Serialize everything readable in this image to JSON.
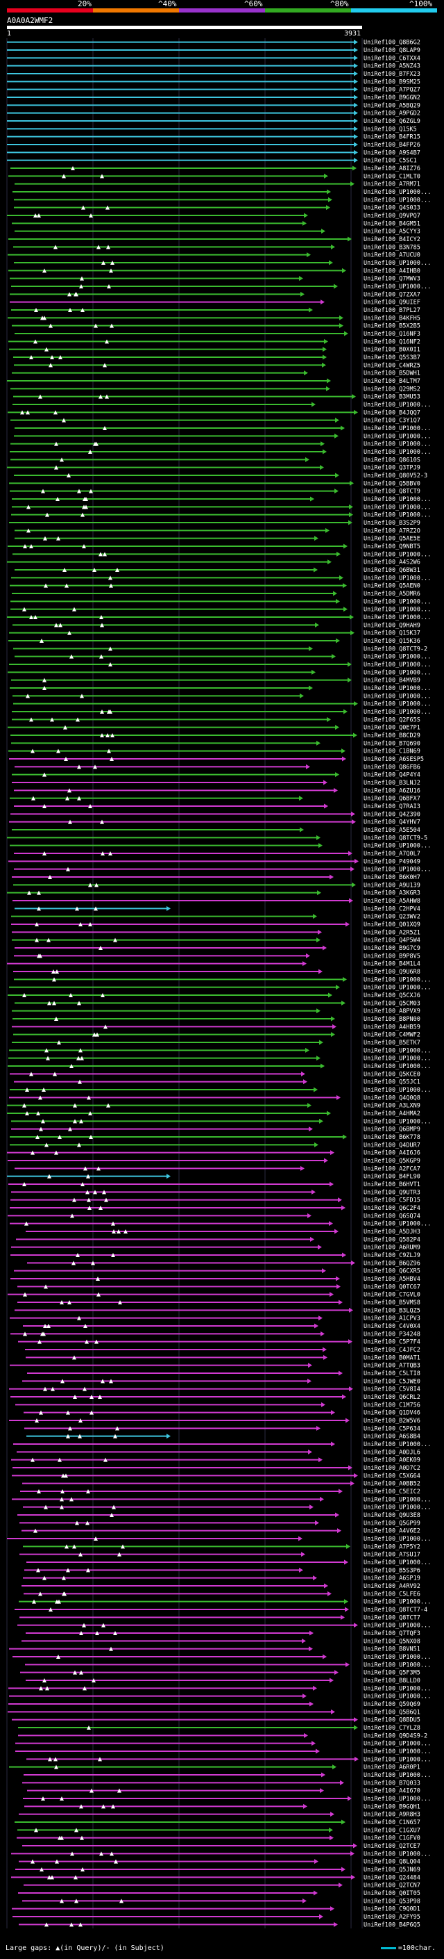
{
  "colors": {
    "red": "#e8001e",
    "orange": "#f07800",
    "purple": "#9933cc",
    "green": "#33aa22",
    "cyan": "#22ccee",
    "line_cyan": "#3ec6df",
    "line_green": "#3bbb2f",
    "line_magenta": "#d13ad1",
    "line_blue": "#3a5cff"
  },
  "header": {
    "percent_labels": [
      "20%",
      "^40%",
      "^60%",
      "^80%",
      "^100%"
    ],
    "query_id": "A0A0A2WMF2",
    "query_start": "1",
    "query_end": "3931"
  },
  "legend": {
    "text": "Large gaps: ▲(in Query)/- (in Subject)"
  },
  "scale": {
    "text": "=100char."
  },
  "hits": [
    {
      "label": "UniRef100_Q8B6G2",
      "color": "cyan"
    },
    {
      "label": "UniRef100_Q8LAP9",
      "color": "cyan"
    },
    {
      "label": "UniRef100_C6TXX4",
      "color": "cyan"
    },
    {
      "label": "UniRef100_A5NZ43",
      "color": "cyan"
    },
    {
      "label": "UniRef100_B7FX23",
      "color": "cyan"
    },
    {
      "label": "UniRef100_B9SM25",
      "color": "cyan"
    },
    {
      "label": "UniRef100_A7PQZ7",
      "color": "cyan"
    },
    {
      "label": "UniRef100_B9GGN2",
      "color": "cyan"
    },
    {
      "label": "UniRef100_A5BQ29",
      "color": "cyan"
    },
    {
      "label": "UniRef100_A9PGD2",
      "color": "cyan"
    },
    {
      "label": "UniRef100_Q6ZGL9",
      "color": "cyan"
    },
    {
      "label": "UniRef100_Q15K5",
      "color": "cyan"
    },
    {
      "label": "UniRef100_B4FR15",
      "color": "cyan"
    },
    {
      "label": "UniRef100_B4FP26",
      "color": "cyan"
    },
    {
      "label": "UniRef100_A9S4B7",
      "color": "cyan"
    },
    {
      "label": "UniRef100_C5SC1",
      "color": "cyan"
    },
    {
      "label": "UniRef100_A8IZ76",
      "color": "green"
    },
    {
      "label": "UniRef100_C1MLT0",
      "color": "green"
    },
    {
      "label": "UniRef100_A7RM71",
      "color": "green"
    },
    {
      "label": "UniRef100_UP1000...",
      "color": "green"
    },
    {
      "label": "UniRef100_UP1000...",
      "color": "green"
    },
    {
      "label": "UniRef100_Q4S033",
      "color": "green"
    },
    {
      "label": "UniRef100_Q9VPQ7",
      "color": "green"
    },
    {
      "label": "UniRef100_B4GM51",
      "color": "green"
    },
    {
      "label": "UniRef100_A5CYY3",
      "color": "green"
    },
    {
      "label": "UniRef100_B4ICY2",
      "color": "green"
    },
    {
      "label": "UniRef100_B3N785",
      "color": "green"
    },
    {
      "label": "UniRef100_A7UCU0",
      "color": "green"
    },
    {
      "label": "UniRef100_UP1000...",
      "color": "green"
    },
    {
      "label": "UniRef100_A4IHB0",
      "color": "green"
    },
    {
      "label": "UniRef100_Q7MWV3",
      "color": "green"
    },
    {
      "label": "UniRef100_UP1000...",
      "color": "green"
    },
    {
      "label": "UniRef100_Q7ZXA7",
      "color": "green"
    },
    {
      "label": "UniRef100_Q9UIEF",
      "color": "magenta"
    },
    {
      "label": "UniRef100_B7PL27",
      "color": "green"
    },
    {
      "label": "UniRef100_B4KFH5",
      "color": "green"
    },
    {
      "label": "UniRef100_B5X2B5",
      "color": "green"
    },
    {
      "label": "UniRef100_Q16NF3",
      "color": "green"
    },
    {
      "label": "UniRef100_Q16NF2",
      "color": "green"
    },
    {
      "label": "UniRef100_B0X0I1",
      "color": "green"
    },
    {
      "label": "UniRef100_Q5S3B7",
      "color": "green"
    },
    {
      "label": "UniRef100_C4WRZ5",
      "color": "green"
    },
    {
      "label": "UniRef100_B5DWH1",
      "color": "green"
    },
    {
      "label": "UniRef100_B4LTM7",
      "color": "green"
    },
    {
      "label": "UniRef100_Q29MS2",
      "color": "green"
    },
    {
      "label": "UniRef100_B3MU53",
      "color": "green"
    },
    {
      "label": "UniRef100_UP1000...",
      "color": "green"
    },
    {
      "label": "UniRef100_B4JQQ7",
      "color": "green"
    },
    {
      "label": "UniRef100_C3Y1Q7",
      "color": "green"
    },
    {
      "label": "UniRef100_UP1000...",
      "color": "green"
    },
    {
      "label": "UniRef100_UP1000...",
      "color": "green"
    },
    {
      "label": "UniRef100_UP1000...",
      "color": "green"
    },
    {
      "label": "UniRef100_UP1000...",
      "color": "green"
    },
    {
      "label": "UniRef100_Q8610S",
      "color": "green"
    },
    {
      "label": "UniRef100_Q3TPJ9",
      "color": "green"
    },
    {
      "label": "UniRef100_Q80V52-3",
      "color": "green"
    },
    {
      "label": "UniRef100_Q5BBV0",
      "color": "green"
    },
    {
      "label": "UniRef100_Q8TCT9",
      "color": "green"
    },
    {
      "label": "UniRef100_UP1000...",
      "color": "green"
    },
    {
      "label": "UniRef100_UP1000...",
      "color": "green"
    },
    {
      "label": "UniRef100_UP1000...",
      "color": "green"
    },
    {
      "label": "UniRef100_B3S2P9",
      "color": "green"
    },
    {
      "label": "UniRef100_A7RZ2O",
      "color": "green"
    },
    {
      "label": "UniRef100_Q5AE5E",
      "color": "green"
    },
    {
      "label": "UniRef100_Q9NBT5",
      "color": "green"
    },
    {
      "label": "UniRef100_UP1000...",
      "color": "green"
    },
    {
      "label": "UniRef100_A4S2W6",
      "color": "green"
    },
    {
      "label": "UniRef100_Q6BW31",
      "color": "green"
    },
    {
      "label": "UniRef100_UP1000...",
      "color": "green"
    },
    {
      "label": "UniRef100_Q5AEN0",
      "color": "green"
    },
    {
      "label": "UniRef100_A5DMR6",
      "color": "green"
    },
    {
      "label": "UniRef100_UP1000...",
      "color": "green"
    },
    {
      "label": "UniRef100_UP1000...",
      "color": "green"
    },
    {
      "label": "UniRef100_UP1000...",
      "color": "green"
    },
    {
      "label": "UniRef100_Q9HAH9",
      "color": "green"
    },
    {
      "label": "UniRef100_Q15K37",
      "color": "green"
    },
    {
      "label": "UniRef100_Q15K36",
      "color": "green"
    },
    {
      "label": "UniRef100_Q8TCT9-2",
      "color": "green"
    },
    {
      "label": "UniRef100_UP1000...",
      "color": "green"
    },
    {
      "label": "UniRef100_UP1000...",
      "color": "green"
    },
    {
      "label": "UniRef100_UP1000...",
      "color": "green"
    },
    {
      "label": "UniRef100_B4MVB9",
      "color": "green"
    },
    {
      "label": "UniRef100_UP1000...",
      "color": "green"
    },
    {
      "label": "UniRef100_UP1000...",
      "color": "green"
    },
    {
      "label": "UniRef100_UP1000...",
      "color": "green"
    },
    {
      "label": "UniRef100_UP1000...",
      "color": "green"
    },
    {
      "label": "UniRef100_Q2F65S",
      "color": "green"
    },
    {
      "label": "UniRef100_Q0E7P1",
      "color": "green"
    },
    {
      "label": "UniRef100_B8CD29",
      "color": "green"
    },
    {
      "label": "UniRef100_B7Q690",
      "color": "green"
    },
    {
      "label": "UniRef100_C1BN69",
      "color": "green"
    },
    {
      "label": "UniRef100_A6SESP5",
      "color": "magenta"
    },
    {
      "label": "UniRef100_Q86FB6",
      "color": "magenta"
    },
    {
      "label": "UniRef100_Q4P4Y4",
      "color": "green"
    },
    {
      "label": "UniRef100_B3LNJ2",
      "color": "magenta"
    },
    {
      "label": "UniRef100_A6ZU16",
      "color": "magenta"
    },
    {
      "label": "UniRef100_Q6BFX7",
      "color": "green"
    },
    {
      "label": "UniRef100_Q7RAI3",
      "color": "magenta"
    },
    {
      "label": "UniRef100_Q4Z390",
      "color": "magenta"
    },
    {
      "label": "UniRef100_Q4YHV7",
      "color": "magenta"
    },
    {
      "label": "UniRef100_A5E504",
      "color": "green"
    },
    {
      "label": "UniRef100_Q8TCT9-5",
      "color": "green"
    },
    {
      "label": "UniRef100_UP1000...",
      "color": "green"
    },
    {
      "label": "UniRef100_A7Q0L7",
      "color": "magenta"
    },
    {
      "label": "UniRef100_P49049",
      "color": "magenta"
    },
    {
      "label": "UniRef100_UP1000...",
      "color": "magenta"
    },
    {
      "label": "UniRef100_B6K0H7",
      "color": "magenta"
    },
    {
      "label": "UniRef100_A9U139",
      "color": "green"
    },
    {
      "label": "UniRef100_A3KGR3",
      "color": "green"
    },
    {
      "label": "UniRef100_A5AHW8",
      "color": "magenta"
    },
    {
      "label": "UniRef100_C2HPV4",
      "color": "cyan"
    },
    {
      "label": "UniRef100_Q23WV2",
      "color": "green"
    },
    {
      "label": "UniRef100_Q01XQ9",
      "color": "magenta"
    },
    {
      "label": "UniRef100_A2R5Z1",
      "color": "magenta"
    },
    {
      "label": "UniRef100_Q4P5W4",
      "color": "green"
    },
    {
      "label": "UniRef100_B9G7C9",
      "color": "magenta"
    },
    {
      "label": "UniRef100_B9P8V5",
      "color": "magenta"
    },
    {
      "label": "UniRef100_B4M1L4",
      "color": "magenta"
    },
    {
      "label": "UniRef100_Q9U6R8",
      "color": "magenta"
    },
    {
      "label": "UniRef100_UP1000...",
      "color": "green"
    },
    {
      "label": "UniRef100_UP1000...",
      "color": "green"
    },
    {
      "label": "UniRef100_Q5CXJ6",
      "color": "green"
    },
    {
      "label": "UniRef100_Q5CM03",
      "color": "green"
    },
    {
      "label": "UniRef100_A8PVX9",
      "color": "green"
    },
    {
      "label": "UniRef100_B8PN00",
      "color": "green"
    },
    {
      "label": "UniRef100_A4HB59",
      "color": "magenta"
    },
    {
      "label": "UniRef100_C4MWF2",
      "color": "green"
    },
    {
      "label": "UniRef100_B5ETK7",
      "color": "green"
    },
    {
      "label": "UniRef100_UP1000...",
      "color": "green"
    },
    {
      "label": "UniRef100_UP1000...",
      "color": "green"
    },
    {
      "label": "UniRef100_UP1000...",
      "color": "green"
    },
    {
      "label": "UniRef100_Q5KCE0",
      "color": "magenta"
    },
    {
      "label": "UniRef100_Q55JC1",
      "color": "magenta"
    },
    {
      "label": "UniRef100_UP1000...",
      "color": "green"
    },
    {
      "label": "UniRef100_Q4Q0Q8",
      "color": "magenta"
    },
    {
      "label": "UniRef100_A3LXN9",
      "color": "green"
    },
    {
      "label": "UniRef100_A4HMA2",
      "color": "green"
    },
    {
      "label": "UniRef100_UP1000...",
      "color": "green"
    },
    {
      "label": "UniRef100_Q6BMP9",
      "color": "magenta"
    },
    {
      "label": "UniRef100_B6K778",
      "color": "green"
    },
    {
      "label": "UniRef100_Q4DUR7",
      "color": "green"
    },
    {
      "label": "UniRef100_A4I6J6",
      "color": "magenta"
    },
    {
      "label": "UniRef100_Q5KGP9",
      "color": "magenta"
    },
    {
      "label": "UniRef100_A2FCA7",
      "color": "magenta"
    },
    {
      "label": "UniRef100_B4FL90",
      "color": "cyan"
    },
    {
      "label": "UniRef100_B6HVT1",
      "color": "magenta"
    },
    {
      "label": "UniRef100_Q9UTR3",
      "color": "magenta"
    },
    {
      "label": "UniRef100_C5FD15",
      "color": "magenta"
    },
    {
      "label": "UniRef100_Q6C2F4",
      "color": "magenta"
    },
    {
      "label": "UniRef100_Q6SQ74",
      "color": "magenta"
    },
    {
      "label": "UniRef100_UP1000...",
      "color": "magenta"
    },
    {
      "label": "UniRef100_A5DJH3",
      "color": "magenta"
    },
    {
      "label": "UniRef100_Q582P4",
      "color": "magenta"
    },
    {
      "label": "UniRef100_A6RUM9",
      "color": "magenta"
    },
    {
      "label": "UniRef100_C9ZLJ9",
      "color": "magenta"
    },
    {
      "label": "UniRef100_B6QZ96",
      "color": "magenta"
    },
    {
      "label": "UniRef100_Q6CXR5",
      "color": "magenta"
    },
    {
      "label": "UniRef100_A5HBV4",
      "color": "magenta"
    },
    {
      "label": "UniRef100_Q0TC67",
      "color": "magenta"
    },
    {
      "label": "UniRef100_C7GVL0",
      "color": "magenta"
    },
    {
      "label": "UniRef100_B5VMS8",
      "color": "magenta"
    },
    {
      "label": "UniRef100_B3LQZ5",
      "color": "magenta"
    },
    {
      "label": "UniRef100_A1CPV3",
      "color": "magenta"
    },
    {
      "label": "UniRef100_C4V0X4",
      "color": "magenta"
    },
    {
      "label": "UniRef100_P34248",
      "color": "magenta"
    },
    {
      "label": "UniRef100_C5P7F4",
      "color": "magenta"
    },
    {
      "label": "UniRef100_C4JFC2",
      "color": "magenta"
    },
    {
      "label": "UniRef100_B0MAT1",
      "color": "magenta"
    },
    {
      "label": "UniRef100_A7TQB3",
      "color": "magenta"
    },
    {
      "label": "UniRef100_C5LTI8",
      "color": "magenta"
    },
    {
      "label": "UniRef100_C5JWE0",
      "color": "magenta"
    },
    {
      "label": "UniRef100_C5V8I4",
      "color": "magenta"
    },
    {
      "label": "UniRef100_Q6CRL2",
      "color": "magenta"
    },
    {
      "label": "UniRef100_C1M756",
      "color": "magenta"
    },
    {
      "label": "UniRef100_Q1DV46",
      "color": "magenta"
    },
    {
      "label": "UniRef100_B2W5V6",
      "color": "magenta"
    },
    {
      "label": "UniRef100_C5P634",
      "color": "magenta"
    },
    {
      "label": "UniRef100_A6S8B4",
      "color": "cyan"
    },
    {
      "label": "UniRef100_UP1000...",
      "color": "magenta"
    },
    {
      "label": "UniRef100_A0DJL6",
      "color": "magenta"
    },
    {
      "label": "UniRef100_A0EK09",
      "color": "magenta"
    },
    {
      "label": "UniRef100_A0D7C2",
      "color": "magenta"
    },
    {
      "label": "UniRef100_C5XG64",
      "color": "magenta"
    },
    {
      "label": "UniRef100_A0BB52",
      "color": "magenta"
    },
    {
      "label": "UniRef100_C5EIC2",
      "color": "magenta"
    },
    {
      "label": "UniRef100_UP1000...",
      "color": "magenta"
    },
    {
      "label": "UniRef100_UP1000...",
      "color": "magenta"
    },
    {
      "label": "UniRef100_Q9U3E8",
      "color": "magenta"
    },
    {
      "label": "UniRef100_Q5GP99",
      "color": "magenta"
    },
    {
      "label": "UniRef100_A4V6E2",
      "color": "magenta"
    },
    {
      "label": "UniRef100_UP1000...",
      "color": "magenta"
    },
    {
      "label": "UniRef100_A7P5Y2",
      "color": "green"
    },
    {
      "label": "UniRef100_A7SU17",
      "color": "magenta"
    },
    {
      "label": "UniRef100_UP1000...",
      "color": "magenta"
    },
    {
      "label": "UniRef100_B5S3P6",
      "color": "magenta"
    },
    {
      "label": "UniRef100_A6SP19",
      "color": "magenta"
    },
    {
      "label": "UniRef100_A4RV92",
      "color": "magenta"
    },
    {
      "label": "UniRef100_C5LFE6",
      "color": "magenta"
    },
    {
      "label": "UniRef100_UP1000...",
      "color": "green"
    },
    {
      "label": "UniRef100_Q8TCT7-4",
      "color": "magenta"
    },
    {
      "label": "UniRef100_Q8TCT7",
      "color": "magenta"
    },
    {
      "label": "UniRef100_UP1000...",
      "color": "magenta"
    },
    {
      "label": "UniRef100_Q7TQF3",
      "color": "magenta"
    },
    {
      "label": "UniRef100_Q5NX08",
      "color": "magenta"
    },
    {
      "label": "UniRef100_B8VN51",
      "color": "magenta"
    },
    {
      "label": "UniRef100_UP1000...",
      "color": "magenta"
    },
    {
      "label": "UniRef100_UP1000...",
      "color": "magenta"
    },
    {
      "label": "UniRef100_Q5F3M5",
      "color": "magenta"
    },
    {
      "label": "UniRef100_B8LLD0",
      "color": "magenta"
    },
    {
      "label": "UniRef100_UP1000...",
      "color": "magenta"
    },
    {
      "label": "UniRef100_UP1000...",
      "color": "magenta"
    },
    {
      "label": "UniRef100_Q59Q69",
      "color": "magenta"
    },
    {
      "label": "UniRef100_Q5B6Q1",
      "color": "magenta"
    },
    {
      "label": "UniRef100_Q8BDU5",
      "color": "magenta"
    },
    {
      "label": "UniRef100_C7YLZ8",
      "color": "green"
    },
    {
      "label": "UniRef100_Q9D4S9-2",
      "color": "magenta"
    },
    {
      "label": "UniRef100_UP1000...",
      "color": "magenta"
    },
    {
      "label": "UniRef100_UP1000...",
      "color": "magenta"
    },
    {
      "label": "UniRef100_UP1000...",
      "color": "magenta"
    },
    {
      "label": "UniRef100_A6R0P1",
      "color": "green"
    },
    {
      "label": "UniRef100_UP1000...",
      "color": "magenta"
    },
    {
      "label": "UniRef100_B7Q033",
      "color": "magenta"
    },
    {
      "label": "UniRef100_A4I670",
      "color": "magenta"
    },
    {
      "label": "UniRef100_UP1000...",
      "color": "magenta"
    },
    {
      "label": "UniRef100_B9GQH1",
      "color": "magenta"
    },
    {
      "label": "UniRef100_A9R8H3",
      "color": "magenta"
    },
    {
      "label": "UniRef100_C1N657",
      "color": "green"
    },
    {
      "label": "UniRef100_C1GXU7",
      "color": "green"
    },
    {
      "label": "UniRef100_C1GFV0",
      "color": "magenta"
    },
    {
      "label": "UniRef100_Q2TCE7",
      "color": "magenta"
    },
    {
      "label": "UniRef100_UP1000...",
      "color": "magenta"
    },
    {
      "label": "UniRef100_Q8LQ04",
      "color": "magenta"
    },
    {
      "label": "UniRef100_Q5JN69",
      "color": "magenta"
    },
    {
      "label": "UniRef100_Q24484",
      "color": "magenta"
    },
    {
      "label": "UniRef100_Q2TCN7",
      "color": "magenta"
    },
    {
      "label": "UniRef100_Q0IT05",
      "color": "magenta"
    },
    {
      "label": "UniRef100_Q53P98",
      "color": "magenta"
    },
    {
      "label": "UniRef100_C9Q0D1",
      "color": "magenta"
    },
    {
      "label": "UniRef100_A2FY95",
      "color": "magenta"
    },
    {
      "label": "UniRef100_B4P6Q5",
      "color": "magenta"
    }
  ]
}
